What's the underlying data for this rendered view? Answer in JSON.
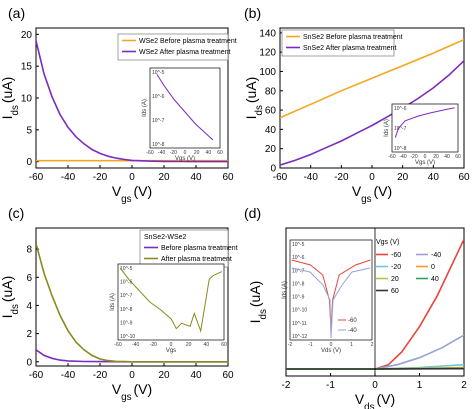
{
  "figure": {
    "panel_labels": [
      "(a)",
      "(b)",
      "(c)",
      "(d)"
    ]
  },
  "colors": {
    "before": "#f5a623",
    "after": "#7b2cbf",
    "snse_wse_after": "#8a8a1e",
    "d_m60": "#e8453c",
    "d_m40": "#9aa0d8",
    "d_m20": "#6ec6e6",
    "d_0": "#f0a020",
    "d_20": "#a9c94a",
    "d_40": "#2aa35a",
    "d_60": "#333333"
  },
  "chart_data": [
    {
      "id": "a",
      "type": "line",
      "xlabel": "Vgs (V)",
      "ylabel": "Ids (uA)",
      "xlim": [
        -60,
        60
      ],
      "ylim": [
        -1,
        21
      ],
      "xticks": [
        "-60",
        "-40",
        "-20",
        "0",
        "20",
        "40",
        "60"
      ],
      "yticks": [
        "0",
        "5",
        "10",
        "15",
        "20"
      ],
      "legend": "top-right",
      "series": [
        {
          "name": "WSe2 Before plasma treatment",
          "x": [
            -60,
            -40,
            -20,
            0,
            20,
            40,
            60
          ],
          "y": [
            0.15,
            0.15,
            0.15,
            0.15,
            0.15,
            0.15,
            0.15
          ]
        },
        {
          "name": "WSe2 After plasma treatment",
          "x": [
            -60,
            -55,
            -50,
            -45,
            -40,
            -35,
            -30,
            -25,
            -20,
            -15,
            -10,
            -5,
            0,
            10,
            20,
            30,
            40,
            60
          ],
          "y": [
            19.0,
            13.8,
            10.2,
            7.4,
            5.4,
            3.9,
            2.8,
            1.9,
            1.3,
            0.85,
            0.55,
            0.35,
            0.2,
            0.08,
            0.04,
            0.02,
            0.01,
            0.0
          ]
        }
      ],
      "inset": {
        "xlabel": "Vgs (V)",
        "ylabel": "Ids (A)",
        "xticks": [
          "-60",
          "-40",
          "-20",
          "0",
          "20",
          "40",
          "60"
        ],
        "yticks": [
          "10^-5",
          "10^-6",
          "10^-7",
          "10^-8"
        ]
      }
    },
    {
      "id": "b",
      "type": "line",
      "xlabel": "Vgs (V)",
      "ylabel": "Ids (uA)",
      "xlim": [
        -60,
        60
      ],
      "ylim": [
        0,
        145
      ],
      "xticks": [
        "-60",
        "-40",
        "-20",
        "0",
        "20",
        "40",
        "60"
      ],
      "yticks": [
        "0",
        "20",
        "40",
        "60",
        "80",
        "100",
        "120",
        "140"
      ],
      "legend": "top-left",
      "series": [
        {
          "name": "SnSe2 Before plasma treatment",
          "x": [
            -60,
            -40,
            -20,
            0,
            20,
            40,
            60
          ],
          "y": [
            52,
            66,
            80,
            93,
            106,
            119,
            133
          ]
        },
        {
          "name": "SnSe2 After plasma treatment",
          "x": [
            -60,
            -50,
            -40,
            -30,
            -20,
            -10,
            0,
            10,
            20,
            30,
            40,
            50,
            60
          ],
          "y": [
            3,
            8,
            14,
            21,
            28,
            36,
            44,
            53,
            62,
            72,
            83,
            96,
            111
          ]
        }
      ],
      "inset": {
        "xlabel": "Vgs (V)",
        "ylabel": "Ids (A)",
        "xticks": [
          "-60",
          "-40",
          "-20",
          "0",
          "20",
          "40",
          "60"
        ],
        "yticks": [
          "10^-6",
          "10^-7",
          "10^-8"
        ]
      }
    },
    {
      "id": "c",
      "type": "line",
      "xlabel": "Vgs (V)",
      "ylabel": "Ids (uA)",
      "xlim": [
        -60,
        60
      ],
      "ylim": [
        -0.3,
        9.5
      ],
      "xticks": [
        "-60",
        "-40",
        "-20",
        "0",
        "20",
        "40",
        "60"
      ],
      "yticks": [
        "0",
        "2",
        "4",
        "6",
        "8"
      ],
      "legend": "top-right",
      "legend_title": "SnSe2-WSe2",
      "series": [
        {
          "name": "Before plasma treatment",
          "x": [
            -60,
            -55,
            -50,
            -45,
            -40,
            -30,
            -20,
            0,
            20,
            60
          ],
          "y": [
            0.85,
            0.45,
            0.25,
            0.12,
            0.06,
            0.02,
            0.01,
            0.0,
            0.0,
            0.0
          ]
        },
        {
          "name": "After plasma treatment",
          "x": [
            -60,
            -55,
            -50,
            -45,
            -40,
            -35,
            -30,
            -25,
            -20,
            -15,
            -10,
            -5,
            0,
            20,
            60
          ],
          "y": [
            8.4,
            6.3,
            4.7,
            3.3,
            2.2,
            1.4,
            0.85,
            0.45,
            0.2,
            0.08,
            0.03,
            0.01,
            0.0,
            0.0,
            0.0
          ]
        }
      ],
      "inset": {
        "xlabel": "Vgs",
        "ylabel": "Ids (A)",
        "xticks": [
          "-60",
          "-40",
          "-20",
          "0",
          "20",
          "40",
          "60"
        ],
        "yticks": [
          "10^-5",
          "10^-6",
          "10^-7",
          "10^-8",
          "10^-9",
          "10^-10"
        ]
      }
    },
    {
      "id": "d",
      "type": "line",
      "xlabel": "Vds(V)",
      "ylabel": "Ids (uA)",
      "xlim": [
        -2,
        2
      ],
      "ylim": [
        -0.05,
        1.0
      ],
      "xticks": [
        "-2",
        "-1",
        "0",
        "1",
        "2"
      ],
      "yticks": [],
      "legend": "right",
      "legend_title": "Vgs (V)",
      "series": [
        {
          "name": "-60",
          "x": [
            -2,
            -1,
            0,
            0.3,
            0.6,
            1.0,
            1.4,
            1.7,
            2.0
          ],
          "y": [
            0,
            0,
            0,
            0.03,
            0.12,
            0.3,
            0.52,
            0.72,
            0.92
          ]
        },
        {
          "name": "-40",
          "x": [
            -2,
            -1,
            0,
            0.5,
            1.0,
            1.5,
            2.0
          ],
          "y": [
            0,
            0,
            0,
            0.03,
            0.08,
            0.15,
            0.24
          ]
        },
        {
          "name": "-20",
          "x": [
            -2,
            0,
            1,
            2
          ],
          "y": [
            0,
            0,
            0.01,
            0.03
          ]
        },
        {
          "name": "0",
          "x": [
            -2,
            0,
            2
          ],
          "y": [
            0,
            0,
            0.01
          ]
        },
        {
          "name": "20",
          "x": [
            -2,
            0,
            2
          ],
          "y": [
            0,
            0,
            0.005
          ]
        },
        {
          "name": "40",
          "x": [
            -2,
            0,
            2
          ],
          "y": [
            0,
            0,
            0.003
          ]
        },
        {
          "name": "60",
          "x": [
            -2,
            0,
            2
          ],
          "y": [
            0,
            0,
            0.002
          ]
        }
      ],
      "inset": {
        "xlabel": "Vds (V)",
        "ylabel": "Ids (A)",
        "xticks": [
          "-2",
          "-1",
          "0",
          "1",
          "2"
        ],
        "yticks": [
          "10^-5",
          "10^-6",
          "10^-7",
          "10^-8",
          "10^-9",
          "10^-10",
          "10^-11",
          "10^-12"
        ],
        "legend": [
          "-60",
          "-40"
        ]
      }
    }
  ]
}
